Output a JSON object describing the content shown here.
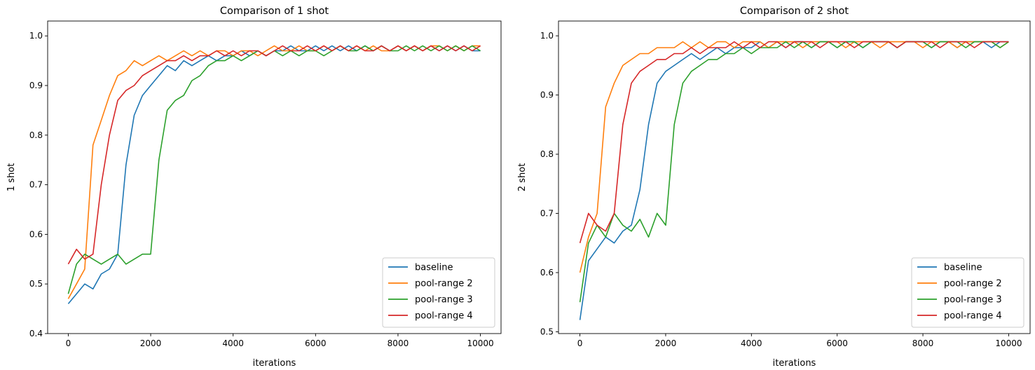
{
  "chart_data": [
    {
      "type": "line",
      "title": "Comparison of 1 shot",
      "xlabel": "iterations",
      "ylabel": "1 shot",
      "xlim": [
        -500,
        10500
      ],
      "ylim": [
        0.4,
        1.03
      ],
      "xticks": [
        0,
        2000,
        4000,
        6000,
        8000,
        10000
      ],
      "yticks": [
        0.4,
        0.5,
        0.6,
        0.7,
        0.8,
        0.9,
        1.0
      ],
      "ytick_labels": [
        "0.4",
        "0.5",
        "0.6",
        "0.7",
        "0.8",
        "0.9",
        "1.0"
      ],
      "grid": false,
      "legend_position": "lower-right",
      "x": {
        "start": 0,
        "step": 200
      },
      "series": [
        {
          "name": "baseline",
          "color": "#1f77b4",
          "values": [
            0.46,
            0.48,
            0.5,
            0.49,
            0.52,
            0.53,
            0.56,
            0.74,
            0.84,
            0.88,
            0.9,
            0.92,
            0.94,
            0.93,
            0.95,
            0.94,
            0.95,
            0.96,
            0.95,
            0.96,
            0.96,
            0.97,
            0.96,
            0.97,
            0.96,
            0.97,
            0.97,
            0.98,
            0.97,
            0.97,
            0.98,
            0.97,
            0.98,
            0.97,
            0.98,
            0.97,
            0.98,
            0.97,
            0.98,
            0.97,
            0.98,
            0.97,
            0.98,
            0.97,
            0.98,
            0.97,
            0.98,
            0.97,
            0.98,
            0.97,
            0.97
          ]
        },
        {
          "name": "pool-range 2",
          "color": "#ff7f0e",
          "values": [
            0.47,
            0.5,
            0.53,
            0.78,
            0.83,
            0.88,
            0.92,
            0.93,
            0.95,
            0.94,
            0.95,
            0.96,
            0.95,
            0.96,
            0.97,
            0.96,
            0.97,
            0.96,
            0.97,
            0.97,
            0.96,
            0.97,
            0.97,
            0.96,
            0.97,
            0.98,
            0.97,
            0.97,
            0.98,
            0.97,
            0.97,
            0.98,
            0.97,
            0.98,
            0.97,
            0.98,
            0.97,
            0.98,
            0.97,
            0.97,
            0.98,
            0.97,
            0.98,
            0.97,
            0.98,
            0.98,
            0.97,
            0.98,
            0.97,
            0.98,
            0.98
          ]
        },
        {
          "name": "pool-range 3",
          "color": "#2ca02c",
          "values": [
            0.48,
            0.54,
            0.56,
            0.55,
            0.54,
            0.55,
            0.56,
            0.54,
            0.55,
            0.56,
            0.56,
            0.75,
            0.85,
            0.87,
            0.88,
            0.91,
            0.92,
            0.94,
            0.95,
            0.95,
            0.96,
            0.95,
            0.96,
            0.97,
            0.96,
            0.97,
            0.96,
            0.97,
            0.96,
            0.97,
            0.97,
            0.96,
            0.97,
            0.98,
            0.97,
            0.97,
            0.98,
            0.97,
            0.98,
            0.97,
            0.97,
            0.98,
            0.97,
            0.98,
            0.97,
            0.98,
            0.97,
            0.98,
            0.97,
            0.98,
            0.97
          ]
        },
        {
          "name": "pool-range 4",
          "color": "#d62728",
          "values": [
            0.54,
            0.57,
            0.55,
            0.56,
            0.7,
            0.8,
            0.87,
            0.89,
            0.9,
            0.92,
            0.93,
            0.94,
            0.95,
            0.95,
            0.96,
            0.95,
            0.96,
            0.96,
            0.97,
            0.96,
            0.97,
            0.96,
            0.97,
            0.97,
            0.96,
            0.97,
            0.98,
            0.97,
            0.97,
            0.98,
            0.97,
            0.98,
            0.97,
            0.98,
            0.97,
            0.98,
            0.97,
            0.97,
            0.98,
            0.97,
            0.98,
            0.97,
            0.98,
            0.97,
            0.98,
            0.97,
            0.98,
            0.97,
            0.98,
            0.97,
            0.98
          ]
        }
      ]
    },
    {
      "type": "line",
      "title": "Comparison of 2 shot",
      "xlabel": "iterations",
      "ylabel": "2 shot",
      "xlim": [
        -500,
        10500
      ],
      "ylim": [
        0.497,
        1.025
      ],
      "xticks": [
        0,
        2000,
        4000,
        6000,
        8000,
        10000
      ],
      "yticks": [
        0.5,
        0.6,
        0.7,
        0.8,
        0.9,
        1.0
      ],
      "ytick_labels": [
        "0.5",
        "0.6",
        "0.7",
        "0.8",
        "0.9",
        "1.0"
      ],
      "grid": false,
      "legend_position": "lower-right",
      "x": {
        "start": 0,
        "step": 200
      },
      "series": [
        {
          "name": "baseline",
          "color": "#1f77b4",
          "values": [
            0.52,
            0.62,
            0.64,
            0.66,
            0.65,
            0.67,
            0.68,
            0.74,
            0.85,
            0.92,
            0.94,
            0.95,
            0.96,
            0.97,
            0.96,
            0.97,
            0.98,
            0.97,
            0.98,
            0.98,
            0.98,
            0.99,
            0.98,
            0.99,
            0.98,
            0.99,
            0.99,
            0.98,
            0.99,
            0.99,
            0.98,
            0.99,
            0.99,
            0.98,
            0.99,
            0.99,
            0.99,
            0.98,
            0.99,
            0.99,
            0.99,
            0.98,
            0.99,
            0.99,
            0.98,
            0.99,
            0.99,
            0.99,
            0.98,
            0.99,
            0.99
          ]
        },
        {
          "name": "pool-range 2",
          "color": "#ff7f0e",
          "values": [
            0.6,
            0.66,
            0.7,
            0.88,
            0.92,
            0.95,
            0.96,
            0.97,
            0.97,
            0.98,
            0.98,
            0.98,
            0.99,
            0.98,
            0.99,
            0.98,
            0.99,
            0.99,
            0.98,
            0.99,
            0.99,
            0.99,
            0.98,
            0.99,
            0.99,
            0.99,
            0.98,
            0.99,
            0.99,
            0.99,
            0.99,
            0.98,
            0.99,
            0.99,
            0.99,
            0.98,
            0.99,
            0.99,
            0.99,
            0.99,
            0.98,
            0.99,
            0.99,
            0.99,
            0.98,
            0.99,
            0.99,
            0.99,
            0.99,
            0.98,
            0.99
          ]
        },
        {
          "name": "pool-range 3",
          "color": "#2ca02c",
          "values": [
            0.55,
            0.65,
            0.68,
            0.66,
            0.7,
            0.68,
            0.67,
            0.69,
            0.66,
            0.7,
            0.68,
            0.85,
            0.92,
            0.94,
            0.95,
            0.96,
            0.96,
            0.97,
            0.97,
            0.98,
            0.97,
            0.98,
            0.98,
            0.98,
            0.99,
            0.98,
            0.99,
            0.98,
            0.99,
            0.99,
            0.98,
            0.99,
            0.99,
            0.98,
            0.99,
            0.99,
            0.99,
            0.98,
            0.99,
            0.99,
            0.99,
            0.98,
            0.99,
            0.99,
            0.99,
            0.98,
            0.99,
            0.99,
            0.99,
            0.98,
            0.99
          ]
        },
        {
          "name": "pool-range 4",
          "color": "#d62728",
          "values": [
            0.65,
            0.7,
            0.68,
            0.67,
            0.7,
            0.85,
            0.92,
            0.94,
            0.95,
            0.96,
            0.96,
            0.97,
            0.97,
            0.98,
            0.97,
            0.98,
            0.98,
            0.98,
            0.99,
            0.98,
            0.99,
            0.98,
            0.99,
            0.99,
            0.98,
            0.99,
            0.99,
            0.99,
            0.98,
            0.99,
            0.99,
            0.99,
            0.98,
            0.99,
            0.99,
            0.99,
            0.99,
            0.98,
            0.99,
            0.99,
            0.99,
            0.99,
            0.98,
            0.99,
            0.99,
            0.99,
            0.98,
            0.99,
            0.99,
            0.99,
            0.99
          ]
        }
      ]
    }
  ]
}
